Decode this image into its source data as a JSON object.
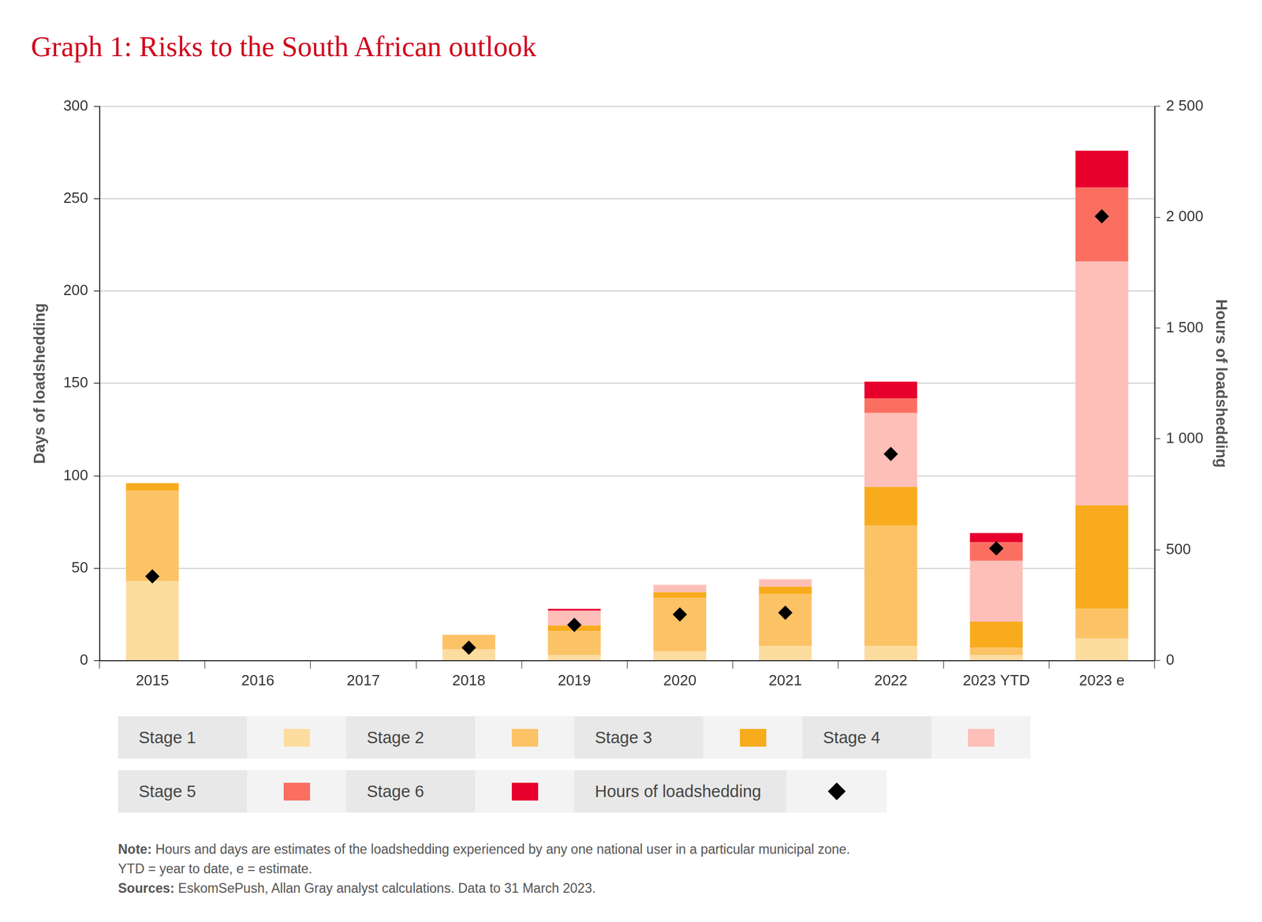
{
  "chart_data": {
    "type": "bar",
    "title": "Graph 1: Risks to the South African outlook",
    "categories": [
      "2015",
      "2016",
      "2017",
      "2018",
      "2019",
      "2020",
      "2021",
      "2022",
      "2023 YTD",
      "2023 e"
    ],
    "stacked": true,
    "grid": true,
    "legend": "bottom",
    "y_label": "Days of loadshedding",
    "y2_label": "Hours of loadshedding",
    "ylim": [
      0,
      300
    ],
    "yticks": [
      0,
      50,
      100,
      150,
      200,
      250,
      300
    ],
    "y2lim": [
      0,
      2500
    ],
    "y2ticks": [
      0,
      500,
      {
        "value": 1000,
        "label": "1 000"
      },
      {
        "value": 1500,
        "label": "1 500"
      },
      {
        "value": 2000,
        "label": "2 000"
      },
      {
        "value": 2500,
        "label": "2 500"
      }
    ],
    "series": [
      {
        "name": "Stage 1",
        "color": "#fddca0",
        "values": [
          43,
          0,
          0,
          6,
          3,
          5,
          8,
          8,
          3,
          12
        ]
      },
      {
        "name": "Stage 2",
        "color": "#fcc266",
        "values": [
          49,
          0,
          0,
          8,
          13,
          29,
          28,
          65,
          4,
          16
        ]
      },
      {
        "name": "Stage 3",
        "color": "#f8ab1c",
        "values": [
          4,
          0,
          0,
          0,
          3,
          3,
          4,
          21,
          14,
          56
        ]
      },
      {
        "name": "Stage 4",
        "color": "#fdbfb8",
        "values": [
          0,
          0,
          0,
          0,
          8,
          4,
          4,
          40,
          33,
          132
        ]
      },
      {
        "name": "Stage 5",
        "color": "#fb6f61",
        "values": [
          0,
          0,
          0,
          0,
          0,
          0,
          0,
          8,
          10,
          40
        ]
      },
      {
        "name": "Stage 6",
        "color": "#e8002d",
        "values": [
          0,
          0,
          0,
          0,
          1,
          0,
          0,
          9,
          5,
          20
        ]
      },
      {
        "name": "Hours of loadshedding",
        "type": "scatter",
        "marker": "diamond",
        "axis": "y2",
        "color": "#000000",
        "values": [
          380,
          null,
          null,
          58,
          161,
          208,
          216,
          932,
          506,
          2004
        ]
      }
    ],
    "note_label": "Note:",
    "note": "Hours and days are estimates of the loadshedding experienced by any one national user in a particular municipal zone.",
    "note2": "YTD = year to date, e = estimate.",
    "sources_label": "Sources:",
    "sources": "EskomSePush, Allan Gray analyst calculations. Data to 31 March 2023."
  }
}
